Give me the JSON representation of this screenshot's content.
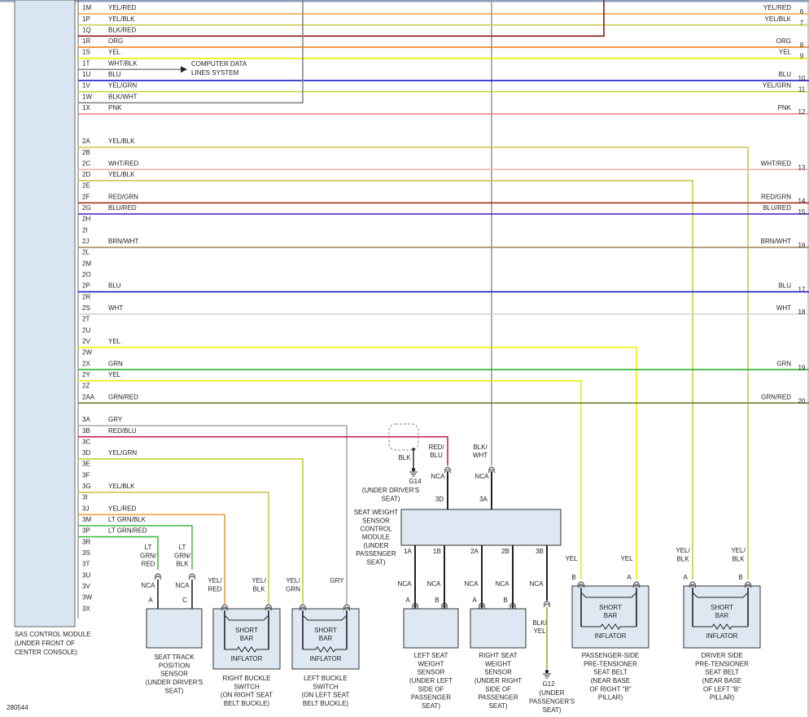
{
  "module_label": [
    "SAS CONTROL MODULE",
    "(UNDER FRONT OF",
    "CENTER CONSOLE)"
  ],
  "pins": [
    {
      "pin": "1M",
      "wire": "YEL/RED"
    },
    {
      "pin": "1P",
      "wire": "YEL/BLK"
    },
    {
      "pin": "1Q",
      "wire": "BLK/RED"
    },
    {
      "pin": "1R",
      "wire": "ORG"
    },
    {
      "pin": "1S",
      "wire": "YEL"
    },
    {
      "pin": "1T",
      "wire": "WHT/BLK"
    },
    {
      "pin": "1U",
      "wire": "BLU"
    },
    {
      "pin": "1V",
      "wire": "YEL/GRN"
    },
    {
      "pin": "1W",
      "wire": "BLK/WHT"
    },
    {
      "pin": "1X",
      "wire": "PNK"
    },
    {
      "pin": "2A",
      "wire": "YEL/BLK"
    },
    {
      "pin": "2B"
    },
    {
      "pin": "2C",
      "wire": "WHT/RED"
    },
    {
      "pin": "2D",
      "wire": "YEL/BLK"
    },
    {
      "pin": "2E"
    },
    {
      "pin": "2F",
      "wire": "RED/GRN"
    },
    {
      "pin": "2G",
      "wire": "BLU/RED"
    },
    {
      "pin": "2H"
    },
    {
      "pin": "2I"
    },
    {
      "pin": "2J",
      "wire": "BRN/WHT"
    },
    {
      "pin": "2L"
    },
    {
      "pin": "2M"
    },
    {
      "pin": "2O"
    },
    {
      "pin": "2P",
      "wire": "BLU"
    },
    {
      "pin": "2R"
    },
    {
      "pin": "2S",
      "wire": "WHT"
    },
    {
      "pin": "2T"
    },
    {
      "pin": "2U"
    },
    {
      "pin": "2V",
      "wire": "YEL"
    },
    {
      "pin": "2W"
    },
    {
      "pin": "2X",
      "wire": "GRN"
    },
    {
      "pin": "2Y",
      "wire": "YEL"
    },
    {
      "pin": "2Z"
    },
    {
      "pin": "2AA",
      "wire": "GRN/RED"
    },
    {
      "pin": "3A",
      "wire": "GRY"
    },
    {
      "pin": "3B",
      "wire": "RED/BLU"
    },
    {
      "pin": "3C"
    },
    {
      "pin": "3D",
      "wire": "YEL/GRN"
    },
    {
      "pin": "3E"
    },
    {
      "pin": "3F"
    },
    {
      "pin": "3G",
      "wire": "YEL/BLK"
    },
    {
      "pin": "3I"
    },
    {
      "pin": "3J",
      "wire": "YEL/RED"
    },
    {
      "pin": "3M",
      "wire": "LT GRN/BLK"
    },
    {
      "pin": "3P",
      "wire": "LT GRN/RED"
    },
    {
      "pin": "3R"
    },
    {
      "pin": "3S"
    },
    {
      "pin": "3T"
    },
    {
      "pin": "3U"
    },
    {
      "pin": "3V"
    },
    {
      "pin": "3W"
    },
    {
      "pin": "3X"
    }
  ],
  "note": [
    "COMPUTER DATA",
    "LINES SYSTEM"
  ],
  "right_labels": [
    {
      "wire": "YEL/RED",
      "ref": "6"
    },
    {
      "wire": "YEL/BLK",
      "ref": "7"
    },
    {
      "wire": "ORG",
      "ref": "8"
    },
    {
      "wire": "YEL",
      "ref": "9"
    },
    {
      "wire": "BLU",
      "ref": "10"
    },
    {
      "wire": "YEL/GRN",
      "ref": "11"
    },
    {
      "wire": "PNK",
      "ref": "12"
    },
    {
      "wire": "WHT/RED",
      "ref": "13"
    },
    {
      "wire": "RED/GRN",
      "ref": "14"
    },
    {
      "wire": "BLU/RED",
      "ref": "15"
    },
    {
      "wire": "BRN/WHT",
      "ref": "16"
    },
    {
      "wire": "BLU",
      "ref": "17"
    },
    {
      "wire": "WHT",
      "ref": "18"
    },
    {
      "wire": "GRN",
      "ref": "19"
    },
    {
      "wire": "GRN/RED",
      "ref": "20"
    }
  ],
  "sws_module": {
    "name": [
      "SEAT WEIGHT",
      "SENSOR",
      "CONTROL",
      "MODULE",
      "(UNDER",
      "PASSENGER",
      "SEAT)"
    ],
    "top": [
      {
        "wire": [
          "RED/",
          "BLU"
        ],
        "nca": "NCA",
        "pin": "3D"
      },
      {
        "wire": [
          "BLK/",
          "WHT"
        ],
        "nca": "NCA",
        "pin": "3A"
      }
    ],
    "bottom": [
      {
        "pin": "1A",
        "nca": "NCA"
      },
      {
        "pin": "1B",
        "nca": "NCA"
      },
      {
        "pin": "2A",
        "nca": "NCA"
      },
      {
        "pin": "2B",
        "nca": "NCA"
      },
      {
        "pin": "3B",
        "nca": "NCA"
      }
    ]
  },
  "ground_g14": {
    "wire": "BLK",
    "name": "G14",
    "location": [
      "(UNDER DRIVER'S",
      "SEAT)"
    ]
  },
  "ground_g12": {
    "wire": [
      "BLK/",
      "YEL"
    ],
    "name": "G12",
    "location": [
      "(UNDER",
      "PASSENGER'S",
      "SEAT)"
    ]
  },
  "components": [
    {
      "wires": [
        [
          "LT",
          "GRN/",
          "RED"
        ],
        [
          "LT",
          "GRN/",
          "BLK"
        ]
      ],
      "nca": [
        "NCA",
        "NCA"
      ],
      "pins": [
        "A",
        "C"
      ],
      "caption": [
        "SEAT TRACK",
        "POSITION",
        "SENSOR",
        "(UNDER DRIVER'S",
        "SEAT)"
      ]
    },
    {
      "wires": [
        [
          "YEL/",
          "RED"
        ],
        [
          "YEL/",
          "BLK"
        ]
      ],
      "inner": {
        "bar": [
          "SHORT",
          "BAR"
        ],
        "label": "INFLATOR"
      },
      "caption": [
        "RIGHT BUCKLE",
        "SWITCH",
        "(ON RIGHT SEAT",
        "BELT BUCKLE)"
      ]
    },
    {
      "wires": [
        [
          "YEL/",
          "GRN"
        ],
        [
          "GRY"
        ]
      ],
      "inner": {
        "bar": [
          "SHORT",
          "BAR"
        ],
        "label": "INFLATOR"
      },
      "caption": [
        "LEFT BUCKLE",
        "SWITCH",
        "(ON LEFT SEAT",
        "BELT BUCKLE)"
      ]
    },
    {
      "pins": [
        "A",
        "B"
      ],
      "caption": [
        "LEFT SEAT",
        "WEIGHT",
        "SENSOR",
        "(UNDER LEFT",
        "SIDE OF",
        "PASSENGER",
        "SEAT)"
      ]
    },
    {
      "pins": [
        "A",
        "B"
      ],
      "caption": [
        "RIGHT SEAT",
        "WEIGHT",
        "SENSOR",
        "(UNDER RIGHT",
        "SIDE OF",
        "PASSENGER",
        "SEAT)"
      ]
    },
    {
      "wires": [
        [
          "YEL"
        ],
        [
          "YEL"
        ]
      ],
      "pins": [
        "B",
        "A"
      ],
      "inner": {
        "bar": [
          "SHORT",
          "BAR"
        ],
        "label": "INFLATOR"
      },
      "caption": [
        "PASSENGER-SIDE",
        "PRE-TENSIONER",
        "SEAT BELT",
        "(NEAR BASE",
        "OF RIGHT \"B\"",
        "PILLAR)"
      ]
    },
    {
      "wires": [
        [
          "YEL/",
          "BLK"
        ],
        [
          "YEL/",
          "BLK"
        ]
      ],
      "pins": [
        "A",
        "B"
      ],
      "inner": {
        "bar": [
          "SHORT",
          "BAR"
        ],
        "label": "INFLATOR"
      },
      "caption": [
        "DRIVER SIDE",
        "PRE-TENSIONER",
        "SEAT BELT",
        "(NEAR BASE",
        "OF LEFT \"B\"",
        "PILLAR)"
      ]
    }
  ],
  "figure_id": "280544"
}
